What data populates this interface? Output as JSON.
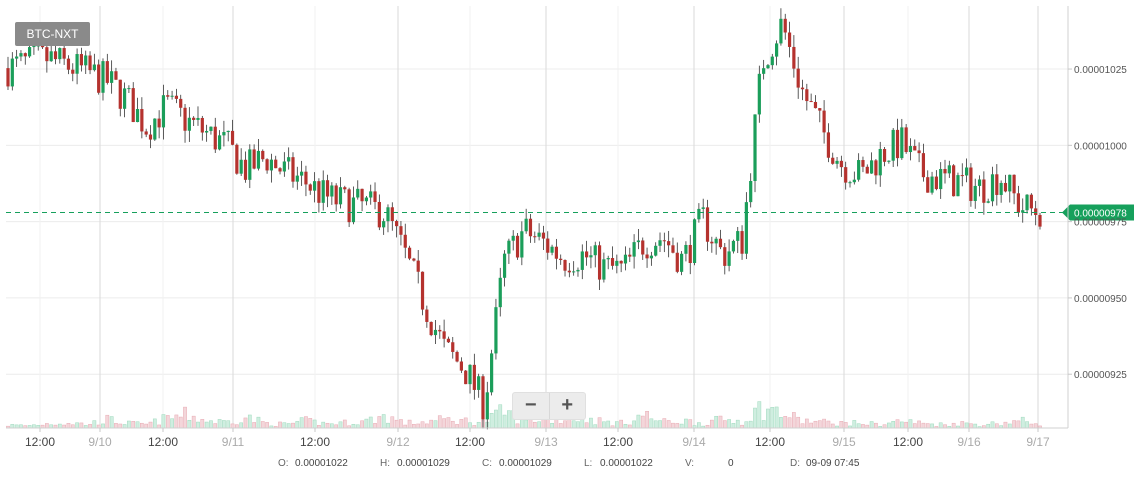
{
  "pair": "BTC-NXT",
  "zoom": {
    "minus": "−",
    "plus": "+"
  },
  "ohlc": {
    "o_label": "O:",
    "o_value": "0.00001022",
    "h_label": "H:",
    "h_value": "0.00001029",
    "c_label": "C:",
    "c_value": "0.00001029",
    "l_label": "L:",
    "l_value": "0.00001022",
    "v_label": "V:",
    "v_value": "0",
    "d_label": "D:",
    "d_value": "09-09 07:45"
  },
  "colors": {
    "up": "#1b9e5a",
    "down": "#b5322e",
    "grid": "#ececec",
    "price": "#16a05c"
  },
  "chart_data": {
    "type": "candlestick",
    "current_price": 9.78e-06,
    "current_price_label": "0.00000978",
    "y_ticks": [
      {
        "value": 1.025e-05,
        "label": "0.00001025"
      },
      {
        "value": 1e-05,
        "label": "0.00001000"
      },
      {
        "value": 9.75e-06,
        "label": "0.00000975"
      },
      {
        "value": 9.5e-06,
        "label": "0.00000950"
      },
      {
        "value": 9.25e-06,
        "label": "0.00000925"
      }
    ],
    "x_ticks": [
      {
        "label": "12:00",
        "day": false
      },
      {
        "label": "9/10",
        "day": true
      },
      {
        "label": "12:00",
        "day": false
      },
      {
        "label": "9/11",
        "day": true
      },
      {
        "label": "12:00",
        "day": false
      },
      {
        "label": "9/12",
        "day": true
      },
      {
        "label": "12:00",
        "day": false
      },
      {
        "label": "9/13",
        "day": true
      },
      {
        "label": "12:00",
        "day": false
      },
      {
        "label": "9/14",
        "day": true
      },
      {
        "label": "12:00",
        "day": false
      },
      {
        "label": "9/15",
        "day": true
      },
      {
        "label": "12:00",
        "day": false
      },
      {
        "label": "9/16",
        "day": true
      },
      {
        "label": "9/17",
        "day": true
      }
    ],
    "ylim": [
      9.1e-06,
      1.045e-05
    ],
    "grid": true,
    "price_anchors": [
      1.0253,
      1.027,
      1.0285,
      1.026,
      1.024,
      1.021,
      1.015,
      1.006,
      1.013,
      1.008,
      1.004,
      1.0,
      0.992,
      0.996,
      0.991,
      0.988,
      0.983,
      0.981,
      0.98,
      0.978,
      0.964,
      0.948,
      0.933,
      0.927,
      0.915,
      0.962,
      0.972,
      0.968,
      0.963,
      0.964,
      0.96,
      0.959,
      0.968,
      0.97,
      0.962,
      0.976,
      0.964,
      0.969,
      1.027,
      1.04,
      1.018,
      1.005,
      0.994,
      0.99,
      0.997,
      1.001,
      0.991,
      0.989,
      0.988,
      0.986,
      0.99,
      0.98,
      0.978
    ],
    "volume_anchors": [
      0.12,
      0.1,
      0.18,
      0.22,
      0.15,
      0.35,
      0.2,
      0.15,
      0.4,
      0.55,
      0.3,
      0.25,
      0.45,
      0.2,
      0.15,
      0.3,
      0.18,
      0.22,
      0.28,
      0.5,
      0.2,
      0.25,
      0.35,
      0.3,
      0.25,
      0.7,
      0.3,
      0.4,
      0.35,
      0.45,
      0.25,
      0.2,
      0.55,
      0.25,
      0.3,
      0.2,
      0.35,
      0.3,
      0.85,
      0.6,
      0.3,
      0.25,
      0.2,
      0.2,
      0.15,
      0.3,
      0.2,
      0.15,
      0.2,
      0.15,
      0.2,
      0.3,
      0.2
    ]
  }
}
